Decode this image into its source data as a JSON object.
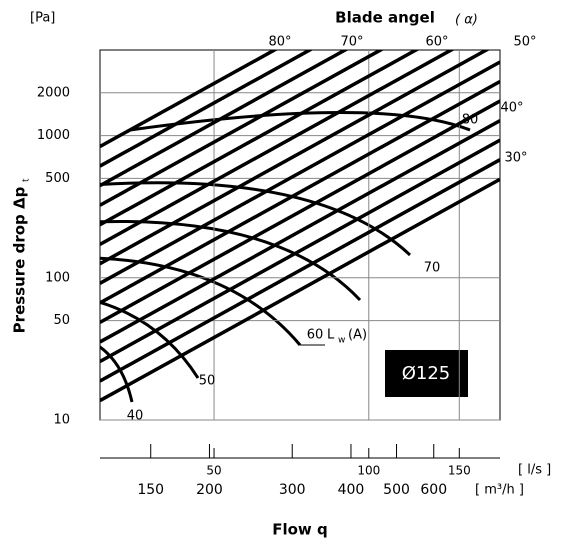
{
  "chart_data": {
    "type": "line",
    "title": "Blade angel",
    "title_symbol": "(    α)",
    "y_unit": "[Pa]",
    "ylabel": "Pressure drop  Δp",
    "ylabel_sub": "t",
    "xlabel": "Flow q",
    "x_unit": "[ l/s ]",
    "x2_unit": "[ m³/h ]",
    "xlog": true,
    "ylog": true,
    "grid": true,
    "xlim": [
      30,
      180
    ],
    "xticks": [
      50,
      100,
      150
    ],
    "x2lim": [
      117,
      830
    ],
    "x2ticks": [
      150,
      200,
      300,
      400,
      500,
      600
    ],
    "ylim": [
      10,
      4000
    ],
    "yticks": [
      10,
      50,
      100,
      500,
      1000,
      2000
    ],
    "x": [
      30,
      180
    ],
    "series": [
      {
        "color": "#000000",
        "values": [
          13.7,
          493
        ]
      },
      {
        "color": "#000000",
        "values": [
          18.8,
          677
        ]
      },
      {
        "color": "#000000",
        "values": [
          25.8,
          929
        ]
      },
      {
        "color": "#000000",
        "values": [
          35.4,
          1274
        ]
      },
      {
        "color": "#000000",
        "values": [
          48.6,
          1750
        ]
      },
      {
        "color": "#000000",
        "values": [
          66.7,
          2401
        ]
      },
      {
        "color": "#000000",
        "values": [
          91.5,
          3294
        ]
      },
      {
        "color": "#000000",
        "values": [
          125.6,
          4522
        ]
      },
      {
        "color": "#000000",
        "values": [
          172,
          6192
        ]
      },
      {
        "color": "#000000",
        "values": [
          236,
          8496
        ]
      },
      {
        "color": "#000000",
        "values": [
          324,
          11664
        ]
      },
      {
        "color": "#000000",
        "values": [
          445,
          16020
        ]
      },
      {
        "color": "#000000",
        "values": [
          611,
          21996
        ]
      },
      {
        "color": "#000000",
        "values": [
          838,
          30168
        ]
      }
    ],
    "angle_labels": [
      "80°",
      "70°",
      "60°",
      "50°",
      "40°",
      "30°"
    ],
    "sound_labels": [
      "40",
      "50",
      "60",
      "70",
      "80"
    ],
    "sound_unit": "L",
    "sound_unit_sub": "w",
    "sound_unit_suffix": "(A)",
    "size_label": "Ø125"
  }
}
